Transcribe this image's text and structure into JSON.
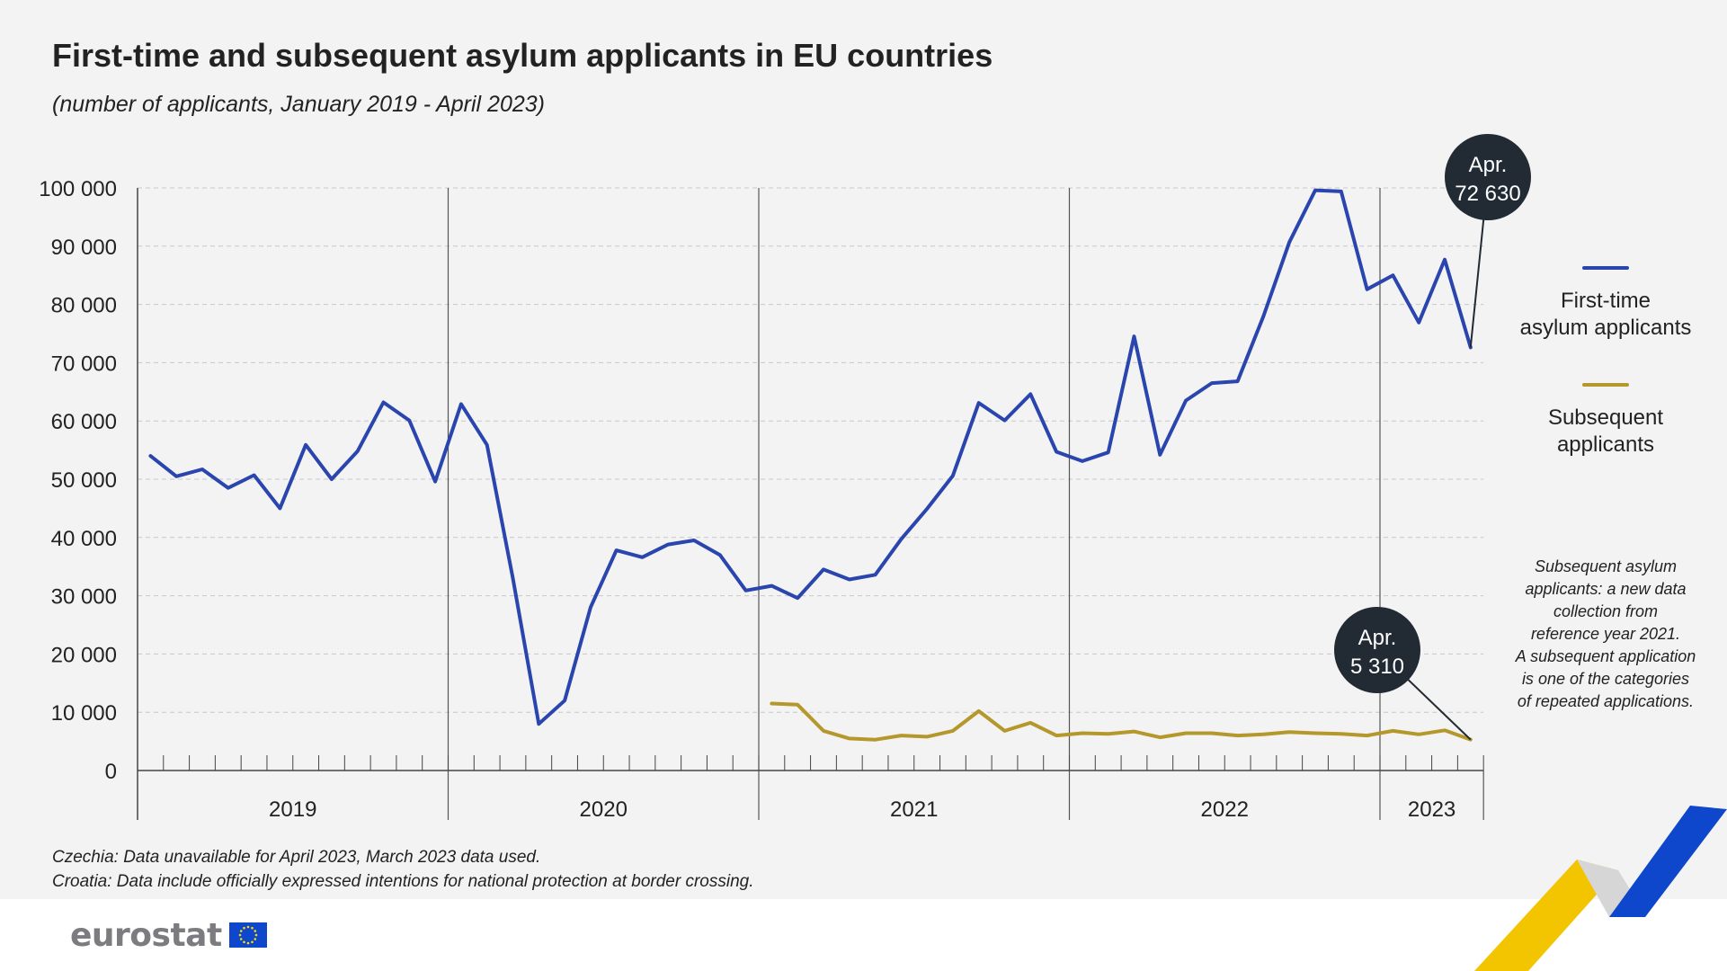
{
  "title": "First-time and subsequent asylum applicants in EU countries",
  "subtitle": "(number of applicants, January 2019 - April 2023)",
  "chart_data": {
    "type": "line",
    "x_start": "2019-01",
    "years": [
      "2019",
      "2020",
      "2021",
      "2022",
      "2023"
    ],
    "y_ticks": [
      "100 000",
      "90 000",
      "80 000",
      "70 000",
      "60 000",
      "50 000",
      "40 000",
      "30 000",
      "20 000",
      "10 000",
      "0"
    ],
    "ylim": [
      0,
      100000
    ],
    "grid": true,
    "legend_position": "right",
    "series": [
      {
        "name": "First-time\nasylum applicants",
        "color": "#2a45ad",
        "start_index": 0,
        "values": [
          54000,
          50500,
          51700,
          48500,
          50700,
          45000,
          55900,
          50000,
          54800,
          63200,
          60100,
          49600,
          62900,
          55900,
          33000,
          8000,
          12000,
          28000,
          37800,
          36600,
          38800,
          39500,
          37000,
          30900,
          31700,
          29600,
          34500,
          32800,
          33600,
          39700,
          44900,
          50600,
          63100,
          60100,
          64600,
          54700,
          53100,
          54600,
          74500,
          54200,
          63500,
          66500,
          66800,
          78000,
          90700,
          99600,
          99400,
          82600,
          85000,
          76900,
          87700,
          72630
        ]
      },
      {
        "name": "Subsequent\napplicants",
        "color": "#b4982c",
        "start_index": 24,
        "values": [
          11500,
          11300,
          6800,
          5500,
          5300,
          6000,
          5800,
          6800,
          10200,
          6800,
          8200,
          6000,
          6400,
          6300,
          6700,
          5700,
          6400,
          6400,
          6000,
          6200,
          6600,
          6400,
          6300,
          6000,
          6800,
          6200,
          6900,
          5310
        ]
      }
    ],
    "callouts": [
      {
        "line1": "Apr.",
        "line2": "72 630"
      },
      {
        "line1": "Apr.",
        "line2": "5 310"
      }
    ]
  },
  "note": "Subsequent asylum\napplicants: a new data\ncollection from\nreference year 2021.\nA subsequent application\nis one of the categories\nof repeated applications.",
  "footnotes": [
    "Czechia: Data unavailable for April 2023, March 2023 data used.",
    "Croatia: Data include officially expressed intentions for national protection at border crossing."
  ],
  "logo_text": "eurostat"
}
